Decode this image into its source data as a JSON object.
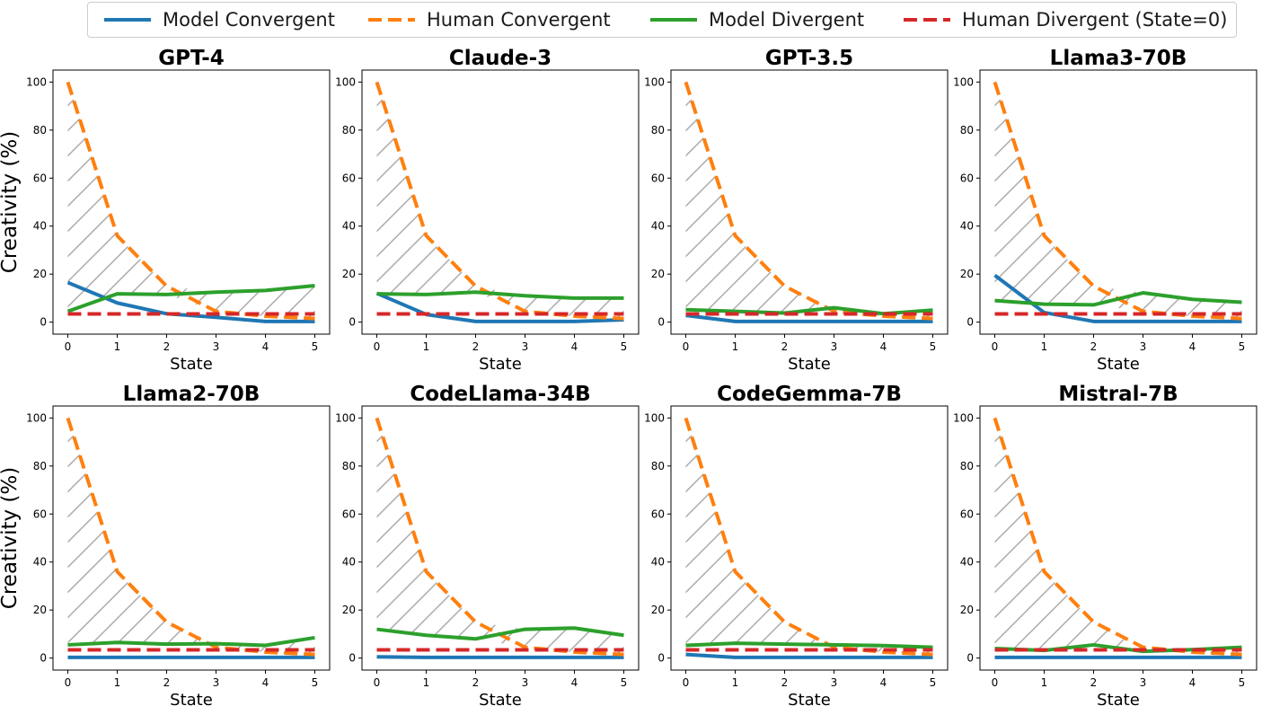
{
  "legend": [
    {
      "label": "Model Convergent",
      "color": "#1f77b4",
      "dashed": false
    },
    {
      "label": "Human Convergent",
      "color": "#ff7f0e",
      "dashed": true
    },
    {
      "label": "Model Divergent",
      "color": "#2ca02c",
      "dashed": false
    },
    {
      "label": "Human Divergent (State=0)",
      "color": "#d62728",
      "dashed": true
    }
  ],
  "chart_data": [
    {
      "type": "line",
      "title": "GPT-4",
      "xlabel": "State",
      "ylabel": "Creativity (%)",
      "x": [
        0,
        1,
        2,
        3,
        4,
        5
      ],
      "xlim": [
        -0.3,
        5.3
      ],
      "ylim": [
        -5,
        105
      ],
      "yticks": [
        0,
        20,
        40,
        60,
        80,
        100
      ],
      "series": [
        {
          "name": "Model Convergent",
          "values": [
            16.5,
            8,
            3.5,
            2,
            0.3,
            0.3
          ]
        },
        {
          "name": "Human Convergent",
          "values": [
            100,
            36,
            15,
            4.5,
            2.5,
            1.5
          ]
        },
        {
          "name": "Model Divergent",
          "values": [
            4.5,
            11.8,
            11.5,
            12.5,
            13.2,
            15.2
          ]
        },
        {
          "name": "Human Divergent (State=0)",
          "values": [
            3.4,
            3.4,
            3.4,
            3.4,
            3.4,
            3.4
          ]
        }
      ]
    },
    {
      "type": "line",
      "title": "Claude-3",
      "xlabel": "State",
      "ylabel": "",
      "x": [
        0,
        1,
        2,
        3,
        4,
        5
      ],
      "xlim": [
        -0.3,
        5.3
      ],
      "ylim": [
        -5,
        105
      ],
      "yticks": [
        0,
        20,
        40,
        60,
        80,
        100
      ],
      "series": [
        {
          "name": "Model Convergent",
          "values": [
            12,
            3.2,
            0.3,
            0.3,
            0.3,
            1
          ]
        },
        {
          "name": "Human Convergent",
          "values": [
            100,
            36,
            15,
            4.5,
            2.5,
            1.5
          ]
        },
        {
          "name": "Model Divergent",
          "values": [
            11.8,
            11.5,
            12.5,
            11,
            10,
            10
          ]
        },
        {
          "name": "Human Divergent (State=0)",
          "values": [
            3.4,
            3.4,
            3.4,
            3.4,
            3.4,
            3.4
          ]
        }
      ]
    },
    {
      "type": "line",
      "title": "GPT-3.5",
      "xlabel": "State",
      "ylabel": "",
      "x": [
        0,
        1,
        2,
        3,
        4,
        5
      ],
      "xlim": [
        -0.3,
        5.3
      ],
      "ylim": [
        -5,
        105
      ],
      "yticks": [
        0,
        20,
        40,
        60,
        80,
        100
      ],
      "series": [
        {
          "name": "Model Convergent",
          "values": [
            2.8,
            0.3,
            0.3,
            0.3,
            0.3,
            0.3
          ]
        },
        {
          "name": "Human Convergent",
          "values": [
            100,
            36,
            15,
            4.5,
            2.5,
            1.5
          ]
        },
        {
          "name": "Model Divergent",
          "values": [
            5.2,
            4.5,
            3.8,
            6,
            3.5,
            5
          ]
        },
        {
          "name": "Human Divergent (State=0)",
          "values": [
            3.4,
            3.4,
            3.4,
            3.4,
            3.4,
            3.4
          ]
        }
      ]
    },
    {
      "type": "line",
      "title": "Llama3-70B",
      "xlabel": "State",
      "ylabel": "",
      "x": [
        0,
        1,
        2,
        3,
        4,
        5
      ],
      "xlim": [
        -0.3,
        5.3
      ],
      "ylim": [
        -5,
        105
      ],
      "yticks": [
        0,
        20,
        40,
        60,
        80,
        100
      ],
      "series": [
        {
          "name": "Model Convergent",
          "values": [
            19.5,
            4,
            0.3,
            0.3,
            0.3,
            0.3
          ]
        },
        {
          "name": "Human Convergent",
          "values": [
            100,
            36,
            15,
            4.5,
            2.5,
            1.5
          ]
        },
        {
          "name": "Model Divergent",
          "values": [
            9,
            7.5,
            7.2,
            12.2,
            9.5,
            8.3
          ]
        },
        {
          "name": "Human Divergent (State=0)",
          "values": [
            3.4,
            3.4,
            3.4,
            3.4,
            3.4,
            3.4
          ]
        }
      ]
    },
    {
      "type": "line",
      "title": "Llama2-70B",
      "xlabel": "State",
      "ylabel": "Creativity (%)",
      "x": [
        0,
        1,
        2,
        3,
        4,
        5
      ],
      "xlim": [
        -0.3,
        5.3
      ],
      "ylim": [
        -5,
        105
      ],
      "yticks": [
        0,
        20,
        40,
        60,
        80,
        100
      ],
      "series": [
        {
          "name": "Model Convergent",
          "values": [
            0.3,
            0.3,
            0.3,
            0.3,
            0.3,
            0.3
          ]
        },
        {
          "name": "Human Convergent",
          "values": [
            100,
            36,
            15,
            4.5,
            2.5,
            1.5
          ]
        },
        {
          "name": "Model Divergent",
          "values": [
            5.5,
            6.5,
            5.8,
            6,
            5.3,
            8.5
          ]
        },
        {
          "name": "Human Divergent (State=0)",
          "values": [
            3.4,
            3.4,
            3.4,
            3.4,
            3.4,
            3.4
          ]
        }
      ]
    },
    {
      "type": "line",
      "title": "CodeLlama-34B",
      "xlabel": "State",
      "ylabel": "",
      "x": [
        0,
        1,
        2,
        3,
        4,
        5
      ],
      "xlim": [
        -0.3,
        5.3
      ],
      "ylim": [
        -5,
        105
      ],
      "yticks": [
        0,
        20,
        40,
        60,
        80,
        100
      ],
      "series": [
        {
          "name": "Model Convergent",
          "values": [
            0.5,
            0.3,
            0.3,
            0.3,
            0.3,
            0.3
          ]
        },
        {
          "name": "Human Convergent",
          "values": [
            100,
            36,
            15,
            4.5,
            2.5,
            1.5
          ]
        },
        {
          "name": "Model Divergent",
          "values": [
            12,
            9.5,
            8,
            12,
            12.5,
            9.5
          ]
        },
        {
          "name": "Human Divergent (State=0)",
          "values": [
            3.4,
            3.4,
            3.4,
            3.4,
            3.4,
            3.4
          ]
        }
      ]
    },
    {
      "type": "line",
      "title": "CodeGemma-7B",
      "xlabel": "State",
      "ylabel": "",
      "x": [
        0,
        1,
        2,
        3,
        4,
        5
      ],
      "xlim": [
        -0.3,
        5.3
      ],
      "ylim": [
        -5,
        105
      ],
      "yticks": [
        0,
        20,
        40,
        60,
        80,
        100
      ],
      "series": [
        {
          "name": "Model Convergent",
          "values": [
            1.5,
            0.3,
            0.3,
            0.3,
            0.3,
            0.3
          ]
        },
        {
          "name": "Human Convergent",
          "values": [
            100,
            36,
            15,
            4.5,
            2.5,
            1.5
          ]
        },
        {
          "name": "Model Divergent",
          "values": [
            5.3,
            6.2,
            5.8,
            5.5,
            5.2,
            4.5
          ]
        },
        {
          "name": "Human Divergent (State=0)",
          "values": [
            3.4,
            3.4,
            3.4,
            3.4,
            3.4,
            3.4
          ]
        }
      ]
    },
    {
      "type": "line",
      "title": "Mistral-7B",
      "xlabel": "State",
      "ylabel": "",
      "x": [
        0,
        1,
        2,
        3,
        4,
        5
      ],
      "xlim": [
        -0.3,
        5.3
      ],
      "ylim": [
        -5,
        105
      ],
      "yticks": [
        0,
        20,
        40,
        60,
        80,
        100
      ],
      "series": [
        {
          "name": "Model Convergent",
          "values": [
            0.3,
            0.3,
            0.3,
            0.3,
            0.3,
            0.3
          ]
        },
        {
          "name": "Human Convergent",
          "values": [
            100,
            36,
            15,
            4.5,
            2.5,
            1.5
          ]
        },
        {
          "name": "Model Divergent",
          "values": [
            4,
            3.2,
            5.5,
            2.8,
            3.5,
            4.5
          ]
        },
        {
          "name": "Human Divergent (State=0)",
          "values": [
            3.4,
            3.4,
            3.4,
            3.4,
            3.4,
            3.4
          ]
        }
      ]
    }
  ]
}
